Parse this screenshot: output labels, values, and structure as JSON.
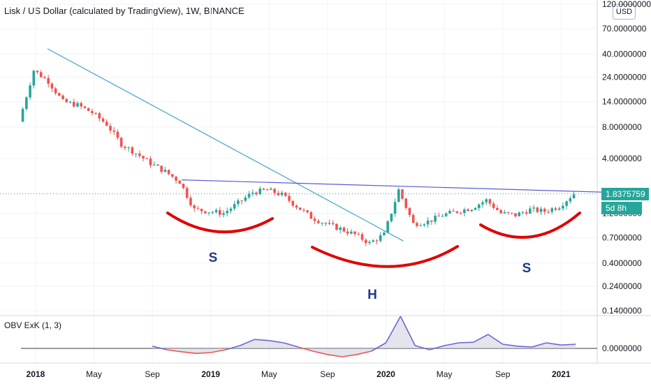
{
  "title": "Lisk / US Dollar (calculated by TradingView), 1W, BINANCE",
  "currency_button": "USD",
  "price_tag": "1.8375759",
  "countdown_tag": "5d 8h",
  "indicator_label": "OBV ExK (1, 3)",
  "annotations": {
    "left_shoulder": "S",
    "head": "H",
    "right_shoulder": "S"
  },
  "colors": {
    "up": "#26a69a",
    "down": "#ef5350",
    "trendline": "#42a5c9",
    "neckline": "#5b5bd6",
    "pattern": "#e00000",
    "obv": "#6c63d8"
  },
  "chart_data": [
    {
      "type": "candlestick",
      "title": "Lisk / US Dollar (calculated by TradingView), 1W, BINANCE",
      "y_scale": "log",
      "y_ticks": [
        "120.0000000",
        "70.0000000",
        "40.0000000",
        "24.0000000",
        "14.0000000",
        "8.0000000",
        "4.0000000",
        "1.2000000",
        "0.7000000",
        "0.4000000",
        "0.2400000",
        "0.1400000"
      ],
      "x_ticks": [
        "2018",
        "May",
        "Sep",
        "2019",
        "May",
        "Sep",
        "2020",
        "May",
        "Sep",
        "2021"
      ],
      "ylim": [
        0.14,
        120
      ],
      "last_price": 1.8375759,
      "close_series": [
        [
          "2017-12",
          9
        ],
        [
          "2018-01",
          28
        ],
        [
          "2018-02",
          22
        ],
        [
          "2018-03",
          14
        ],
        [
          "2018-04",
          13
        ],
        [
          "2018-05",
          11
        ],
        [
          "2018-06",
          8.5
        ],
        [
          "2018-07",
          5.5
        ],
        [
          "2018-08",
          4.5
        ],
        [
          "2018-09",
          3.6
        ],
        [
          "2018-10",
          3.0
        ],
        [
          "2018-11",
          2.4
        ],
        [
          "2018-12",
          1.3
        ],
        [
          "2019-01",
          1.25
        ],
        [
          "2019-02",
          1.2
        ],
        [
          "2019-03",
          1.5
        ],
        [
          "2019-04",
          1.9
        ],
        [
          "2019-05",
          2.0
        ],
        [
          "2019-06",
          1.8
        ],
        [
          "2019-07",
          1.4
        ],
        [
          "2019-08",
          1.1
        ],
        [
          "2019-09",
          0.95
        ],
        [
          "2019-10",
          0.85
        ],
        [
          "2019-11",
          0.75
        ],
        [
          "2019-12",
          0.62
        ],
        [
          "2020-01",
          0.75
        ],
        [
          "2020-02",
          2.0
        ],
        [
          "2020-03",
          0.95
        ],
        [
          "2020-04",
          1.0
        ],
        [
          "2020-05",
          1.15
        ],
        [
          "2020-06",
          1.25
        ],
        [
          "2020-07",
          1.35
        ],
        [
          "2020-08",
          1.6
        ],
        [
          "2020-09",
          1.2
        ],
        [
          "2020-10",
          1.15
        ],
        [
          "2020-11",
          1.3
        ],
        [
          "2020-12",
          1.25
        ],
        [
          "2021-01",
          1.4
        ],
        [
          "2021-02",
          1.84
        ]
      ],
      "trendlines": [
        {
          "name": "descending trendline",
          "from": [
            "2017-12",
            45
          ],
          "to": [
            "2020-01",
            0.65
          ]
        },
        {
          "name": "neckline",
          "from": [
            "2018-11",
            2.5
          ],
          "to": [
            "2021-02",
            1.9
          ]
        }
      ]
    },
    {
      "type": "line",
      "title": "OBV ExK (1, 3)",
      "y_ticks": [
        "0.0000000"
      ],
      "series": [
        {
          "values": [
            [
              "2018-09",
              0.08
            ],
            [
              "2018-10",
              -0.05
            ],
            [
              "2018-11",
              -0.12
            ],
            [
              "2018-12",
              -0.18
            ],
            [
              "2019-01",
              -0.15
            ],
            [
              "2019-02",
              -0.05
            ],
            [
              "2019-03",
              0.1
            ],
            [
              "2019-04",
              0.32
            ],
            [
              "2019-05",
              0.28
            ],
            [
              "2019-06",
              0.2
            ],
            [
              "2019-07",
              0.05
            ],
            [
              "2019-08",
              -0.1
            ],
            [
              "2019-09",
              -0.22
            ],
            [
              "2019-10",
              -0.3
            ],
            [
              "2019-11",
              -0.22
            ],
            [
              "2019-12",
              -0.1
            ],
            [
              "2020-01",
              0.2
            ],
            [
              "2020-02",
              1.15
            ],
            [
              "2020-03",
              0.1
            ],
            [
              "2020-04",
              -0.05
            ],
            [
              "2020-05",
              0.1
            ],
            [
              "2020-06",
              0.2
            ],
            [
              "2020-07",
              0.22
            ],
            [
              "2020-08",
              0.5
            ],
            [
              "2020-09",
              0.15
            ],
            [
              "2020-10",
              0.08
            ],
            [
              "2020-11",
              0.05
            ],
            [
              "2020-12",
              0.2
            ],
            [
              "2021-01",
              0.12
            ],
            [
              "2021-02",
              0.15
            ]
          ]
        }
      ]
    }
  ]
}
